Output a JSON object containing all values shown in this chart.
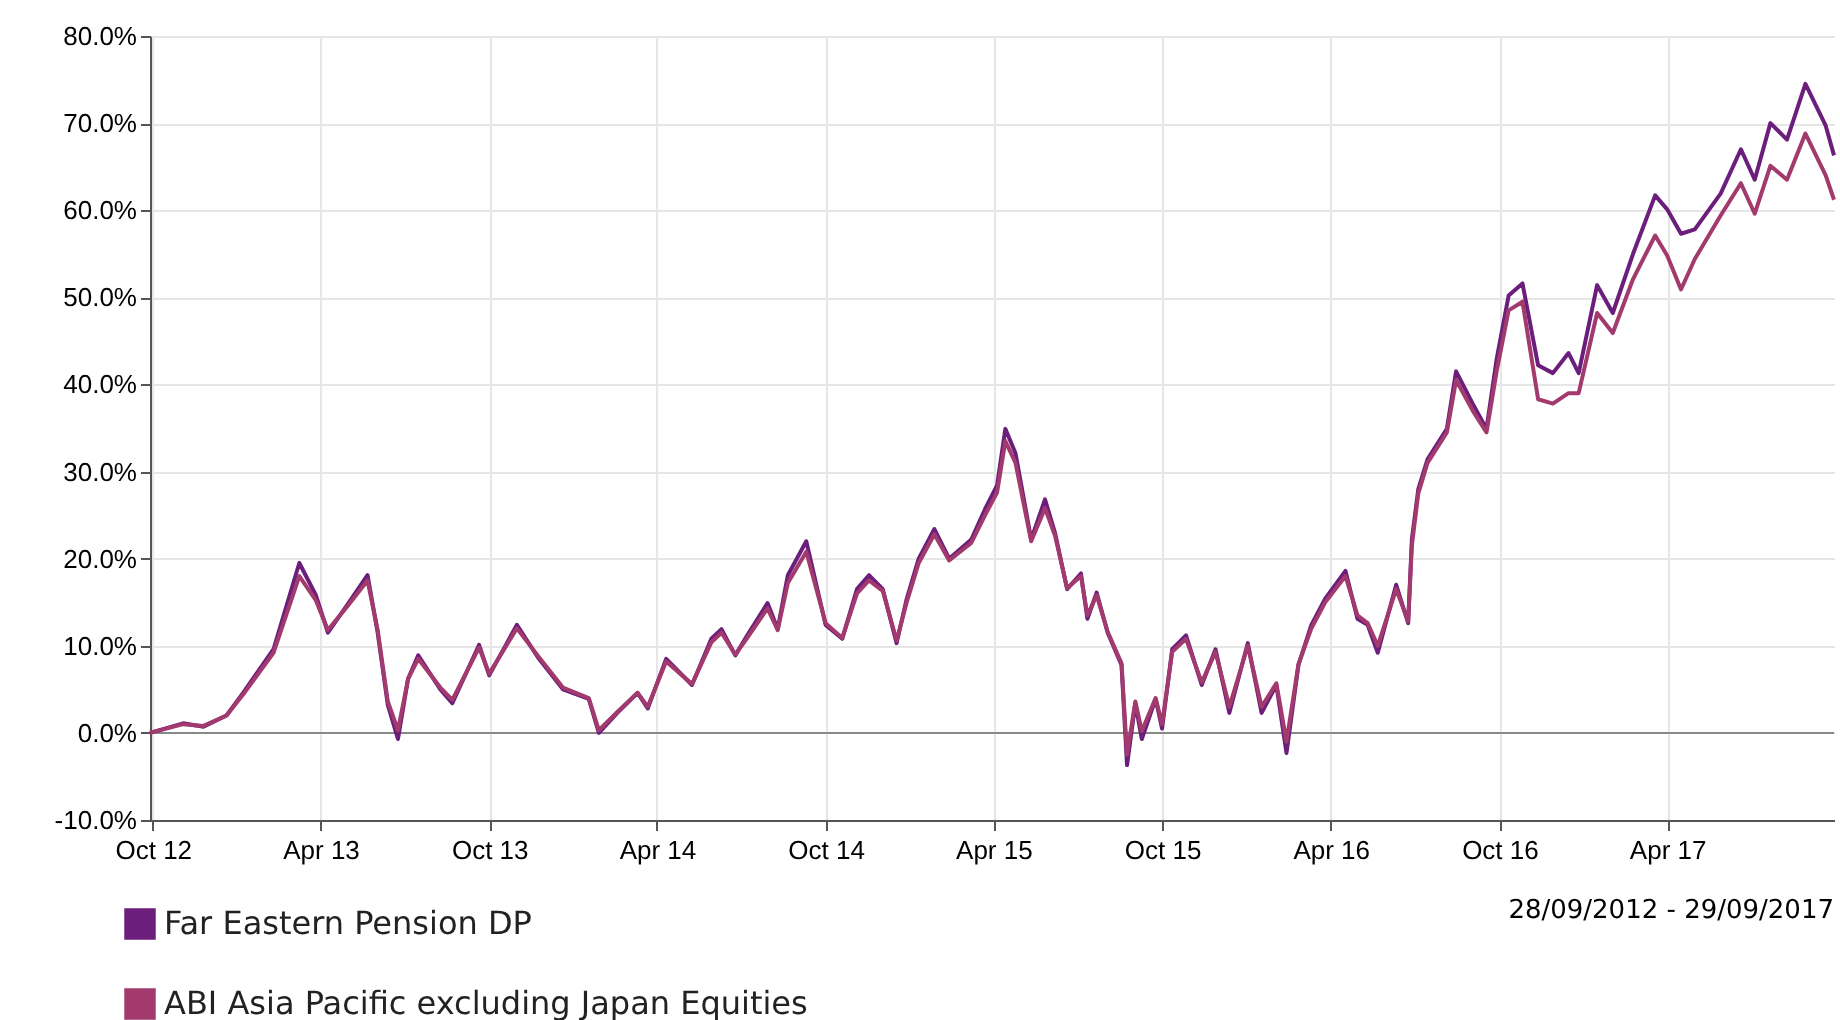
{
  "chart_data": {
    "type": "line",
    "x": [
      "2012-09-28",
      "2012-11-03",
      "2012-11-25",
      "2012-12-20",
      "2013-01-07",
      "2013-02-09",
      "2013-03-09",
      "2013-03-27",
      "2013-04-09",
      "2013-04-30",
      "2013-05-22",
      "2013-06-02",
      "2013-06-13",
      "2013-06-24",
      "2013-07-05",
      "2013-07-16",
      "2013-08-09",
      "2013-08-22",
      "2013-09-20",
      "2013-10-01",
      "2013-10-31",
      "2013-11-24",
      "2013-12-20",
      "2014-01-17",
      "2014-01-28",
      "2014-02-17",
      "2014-03-11",
      "2014-03-22",
      "2014-04-11",
      "2014-05-09",
      "2014-05-30",
      "2014-06-10",
      "2014-06-25",
      "2014-07-08",
      "2014-07-30",
      "2014-08-10",
      "2014-08-21",
      "2014-09-10",
      "2014-10-01",
      "2014-10-19",
      "2014-11-04",
      "2014-11-17",
      "2014-12-02",
      "2014-12-17",
      "2014-12-28",
      "2015-01-10",
      "2015-01-27",
      "2015-02-12",
      "2015-03-08",
      "2015-03-23",
      "2015-04-05",
      "2015-04-14",
      "2015-04-25",
      "2015-05-12",
      "2015-05-27",
      "2015-06-07",
      "2015-06-20",
      "2015-07-05",
      "2015-07-12",
      "2015-07-22",
      "2015-08-03",
      "2015-08-18",
      "2015-08-24",
      "2015-09-02",
      "2015-09-09",
      "2015-09-24",
      "2015-10-01",
      "2015-10-12",
      "2015-10-27",
      "2015-11-13",
      "2015-11-28",
      "2015-12-13",
      "2016-01-02",
      "2016-01-17",
      "2016-02-02",
      "2016-02-13",
      "2016-02-26",
      "2016-03-11",
      "2016-03-26",
      "2016-04-17",
      "2016-04-30",
      "2016-05-11",
      "2016-05-22",
      "2016-06-11",
      "2016-06-24",
      "2016-06-28",
      "2016-07-05",
      "2016-07-15",
      "2016-08-05",
      "2016-08-15",
      "2016-09-02",
      "2016-09-17",
      "2016-09-28",
      "2016-10-11",
      "2016-10-26",
      "2016-11-12",
      "2016-11-28",
      "2016-12-15",
      "2016-12-26",
      "2017-01-15",
      "2017-02-01",
      "2017-02-23",
      "2017-03-19",
      "2017-04-01",
      "2017-04-16",
      "2017-05-01",
      "2017-05-29",
      "2017-06-20",
      "2017-07-05",
      "2017-07-22",
      "2017-08-09",
      "2017-08-29",
      "2017-09-20",
      "2017-09-29"
    ],
    "series": [
      {
        "name": "Far Eastern Pension DP",
        "color": "#6b1e7b",
        "values": [
          0,
          1.1,
          0.7,
          2.0,
          4.6,
          9.6,
          19.5,
          15.8,
          11.5,
          14.7,
          18.1,
          11.5,
          3.2,
          -0.7,
          6.2,
          8.9,
          5.0,
          3.4,
          10.1,
          6.6,
          12.4,
          8.5,
          5.0,
          3.9,
          0,
          2.3,
          4.6,
          2.8,
          8.5,
          5.5,
          10.8,
          11.9,
          8.9,
          11.2,
          14.9,
          11.9,
          18.1,
          22.0,
          12.4,
          10.8,
          16.5,
          18.1,
          16.5,
          10.3,
          15.4,
          20.0,
          23.4,
          20.0,
          22.2,
          25.7,
          28.4,
          34.9,
          32.1,
          22.2,
          26.8,
          22.9,
          16.5,
          18.3,
          13.1,
          16.1,
          11.5,
          7.8,
          -3.7,
          3.4,
          -0.7,
          3.9,
          0.5,
          9.6,
          11.2,
          5.5,
          9.6,
          2.3,
          10.3,
          2.3,
          5.5,
          -2.3,
          7.8,
          12.4,
          15.4,
          18.6,
          13.1,
          12.4,
          9.2,
          17.0,
          12.6,
          22.2,
          28.0,
          31.4,
          34.9,
          41.5,
          37.8,
          34.9,
          42.9,
          50.2,
          51.6,
          42.2,
          41.3,
          43.6,
          41.3,
          51.4,
          48.2,
          55.0,
          61.7,
          60.1,
          57.3,
          57.8,
          61.9,
          67.0,
          63.5,
          70.0,
          68.1,
          74.5,
          69.7,
          66.3
        ]
      },
      {
        "name": "ABI Asia Pacific excluding Japan Equities",
        "color": "#a23a6e",
        "values": [
          0,
          1.0,
          0.8,
          2.0,
          4.4,
          9.2,
          18.0,
          15.2,
          11.8,
          14.5,
          17.5,
          11.8,
          3.6,
          0.3,
          6.2,
          8.5,
          5.2,
          3.8,
          9.8,
          6.8,
          12.0,
          8.7,
          5.2,
          4.0,
          0.3,
          2.4,
          4.6,
          3.0,
          8.2,
          5.6,
          10.4,
          11.5,
          9.0,
          10.9,
          14.3,
          11.8,
          17.2,
          20.8,
          12.6,
          10.9,
          16.0,
          17.5,
          16.3,
          10.6,
          15.0,
          19.5,
          22.8,
          19.8,
          21.8,
          25.0,
          27.6,
          33.5,
          31.0,
          22.0,
          25.8,
          22.6,
          16.6,
          18.0,
          13.5,
          15.8,
          11.6,
          8.0,
          -2.5,
          3.6,
          0.2,
          4.0,
          1.0,
          9.3,
          10.8,
          5.8,
          9.3,
          3.0,
          10.0,
          3.0,
          5.7,
          -1.0,
          7.9,
          12.0,
          15.0,
          18.0,
          13.5,
          12.6,
          10.0,
          16.5,
          12.8,
          21.5,
          27.5,
          31.0,
          34.5,
          40.5,
          37.0,
          34.5,
          41.5,
          48.5,
          49.5,
          38.3,
          37.8,
          39.0,
          39.0,
          48.2,
          45.9,
          52.1,
          57.1,
          54.8,
          50.9,
          54.4,
          59.4,
          63.1,
          59.6,
          65.1,
          63.5,
          68.8,
          64.0,
          61.2
        ]
      }
    ],
    "xlim": [
      "2012-09-28",
      "2017-09-29"
    ],
    "xticks": [
      {
        "value": "2012-10-01",
        "label": "Oct 12"
      },
      {
        "value": "2013-04-01",
        "label": "Apr 13"
      },
      {
        "value": "2013-10-01",
        "label": "Oct 13"
      },
      {
        "value": "2014-04-01",
        "label": "Apr 14"
      },
      {
        "value": "2014-10-01",
        "label": "Oct 14"
      },
      {
        "value": "2015-04-01",
        "label": "Apr 15"
      },
      {
        "value": "2015-10-01",
        "label": "Oct 15"
      },
      {
        "value": "2016-04-01",
        "label": "Apr 16"
      },
      {
        "value": "2016-10-01",
        "label": "Oct 16"
      },
      {
        "value": "2017-04-01",
        "label": "Apr 17"
      }
    ],
    "ylim": [
      -10,
      80
    ],
    "yticks": [
      {
        "value": -10,
        "label": "-10.0%"
      },
      {
        "value": 0,
        "label": "0.0%"
      },
      {
        "value": 10,
        "label": "10.0%"
      },
      {
        "value": 20,
        "label": "20.0%"
      },
      {
        "value": 30,
        "label": "30.0%"
      },
      {
        "value": 40,
        "label": "40.0%"
      },
      {
        "value": 50,
        "label": "50.0%"
      },
      {
        "value": 60,
        "label": "60.0%"
      },
      {
        "value": 70,
        "label": "70.0%"
      },
      {
        "value": 80,
        "label": "80.0%"
      }
    ],
    "ref_lines": [
      {
        "axis": "y",
        "value": 0,
        "color": "#888888"
      }
    ],
    "annotations": [
      "28/09/2012 - 29/09/2017"
    ],
    "grid": true,
    "legend": "bottom left",
    "line_style": "solid",
    "marker": "none"
  }
}
